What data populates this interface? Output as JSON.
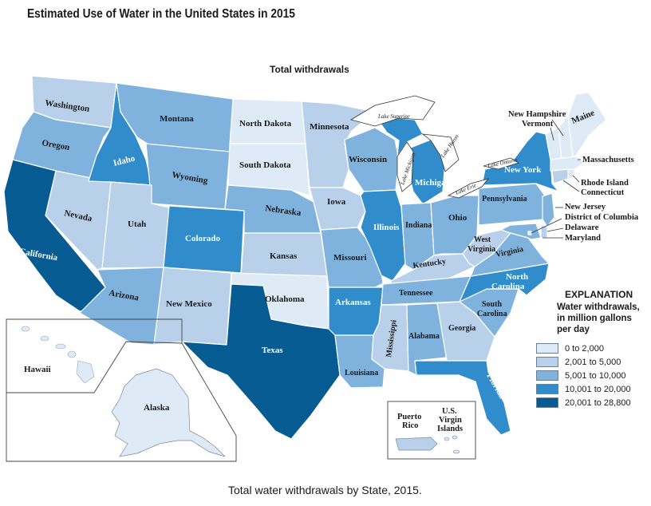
{
  "title": "Estimated Use of Water in the United States in 2015",
  "subtitle": "Total withdrawals",
  "caption": "Total water withdrawals by State, 2015.",
  "colors": {
    "class1": "#deeaf6",
    "class2": "#b9d0ea",
    "class3": "#7fb2dc",
    "class4": "#318ccb",
    "class5": "#065b92"
  },
  "legend": {
    "title": "EXPLANATION",
    "subtitle": "Water withdrawals, in million gallons per day",
    "items": [
      {
        "label": "0 to 2,000",
        "class": 1
      },
      {
        "label": "2,001 to 5,000",
        "class": 2
      },
      {
        "label": "5,001 to 10,000",
        "class": 3
      },
      {
        "label": "10,001 to 20,000",
        "class": 4
      },
      {
        "label": "20,001 to 28,800",
        "class": 5
      }
    ]
  },
  "states": [
    {
      "name": "Washington",
      "class": 2
    },
    {
      "name": "Oregon",
      "class": 3
    },
    {
      "name": "California",
      "class": 5
    },
    {
      "name": "Nevada",
      "class": 2
    },
    {
      "name": "Idaho",
      "class": 4
    },
    {
      "name": "Montana",
      "class": 3
    },
    {
      "name": "Wyoming",
      "class": 3
    },
    {
      "name": "Utah",
      "class": 2
    },
    {
      "name": "Arizona",
      "class": 3
    },
    {
      "name": "Colorado",
      "class": 4
    },
    {
      "name": "New Mexico",
      "class": 2
    },
    {
      "name": "North Dakota",
      "class": 1
    },
    {
      "name": "South Dakota",
      "class": 1
    },
    {
      "name": "Nebraska",
      "class": 3
    },
    {
      "name": "Kansas",
      "class": 2
    },
    {
      "name": "Oklahoma",
      "class": 1
    },
    {
      "name": "Texas",
      "class": 5
    },
    {
      "name": "Minnesota",
      "class": 2
    },
    {
      "name": "Iowa",
      "class": 2
    },
    {
      "name": "Missouri",
      "class": 3
    },
    {
      "name": "Arkansas",
      "class": 4
    },
    {
      "name": "Louisiana",
      "class": 3
    },
    {
      "name": "Wisconsin",
      "class": 3
    },
    {
      "name": "Illinois",
      "class": 4
    },
    {
      "name": "Michigan",
      "class": 4
    },
    {
      "name": "Indiana",
      "class": 3
    },
    {
      "name": "Ohio",
      "class": 3
    },
    {
      "name": "Kentucky",
      "class": 2
    },
    {
      "name": "Tennessee",
      "class": 3
    },
    {
      "name": "Mississippi",
      "class": 2
    },
    {
      "name": "Alabama",
      "class": 3
    },
    {
      "name": "Georgia",
      "class": 2
    },
    {
      "name": "Florida",
      "class": 4
    },
    {
      "name": "South Carolina",
      "class": 3
    },
    {
      "name": "North Carolina",
      "class": 4
    },
    {
      "name": "Virginia",
      "class": 3
    },
    {
      "name": "West Virginia",
      "class": 2
    },
    {
      "name": "Pennsylvania",
      "class": 3
    },
    {
      "name": "New York",
      "class": 4
    },
    {
      "name": "New Jersey",
      "class": 3
    },
    {
      "name": "Delaware",
      "class": 2
    },
    {
      "name": "Maryland",
      "class": 3
    },
    {
      "name": "District of Columbia",
      "class": 1
    },
    {
      "name": "Vermont",
      "class": 1
    },
    {
      "name": "New Hampshire",
      "class": 1
    },
    {
      "name": "Maine",
      "class": 1
    },
    {
      "name": "Massachusetts",
      "class": 1
    },
    {
      "name": "Rhode Island",
      "class": 1
    },
    {
      "name": "Connecticut",
      "class": 2
    },
    {
      "name": "Alaska",
      "class": 1
    },
    {
      "name": "Hawaii",
      "class": 1
    },
    {
      "name": "Puerto Rico",
      "class": 2
    },
    {
      "name": "U.S. Virgin Islands",
      "class": 1
    }
  ],
  "lakes": [
    "Lake Superior",
    "Lake Michigan",
    "Lake Huron",
    "Lake Ontario",
    "Lake Erie"
  ],
  "state_labels": {
    "washington": "Washington",
    "oregon": "Oregon",
    "california": "California",
    "nevada": "Nevada",
    "idaho": "Idaho",
    "montana": "Montana",
    "wyoming": "Wyoming",
    "utah": "Utah",
    "arizona": "Arizona",
    "colorado": "Colorado",
    "new_mexico": "New Mexico",
    "north_dakota": "North Dakota",
    "south_dakota": "South Dakota",
    "nebraska": "Nebraska",
    "kansas": "Kansas",
    "oklahoma": "Oklahoma",
    "texas": "Texas",
    "minnesota": "Minnesota",
    "iowa": "Iowa",
    "missouri": "Missouri",
    "arkansas": "Arkansas",
    "louisiana": "Louisiana",
    "wisconsin": "Wisconsin",
    "illinois": "Illinois",
    "michigan": "Michigan",
    "indiana": "Indiana",
    "ohio": "Ohio",
    "kentucky": "Kentucky",
    "tennessee": "Tennessee",
    "mississippi": "Mississippi",
    "alabama": "Alabama",
    "georgia": "Georgia",
    "florida": "Florida",
    "south": "South",
    "carolina": "Carolina",
    "north": "North",
    "virginia": "Virginia",
    "west": "West",
    "pennsylvania": "Pennsylvania",
    "new_york": "New York",
    "maine": "Maine",
    "hawaii": "Hawaii",
    "alaska": "Alaska",
    "puerto": "Puerto",
    "rico": "Rico",
    "us": "U.S.",
    "virgin": "Virgin",
    "islands": "Islands",
    "new_hampshire": "New Hampshire",
    "vermont": "Vermont",
    "massachusetts": "Massachusetts",
    "rhode_island": "Rhode Island",
    "connecticut": "Connecticut",
    "new_jersey": "New Jersey",
    "district_of_columbia": "District of Columbia",
    "delaware": "Delaware",
    "maryland": "Maryland"
  }
}
